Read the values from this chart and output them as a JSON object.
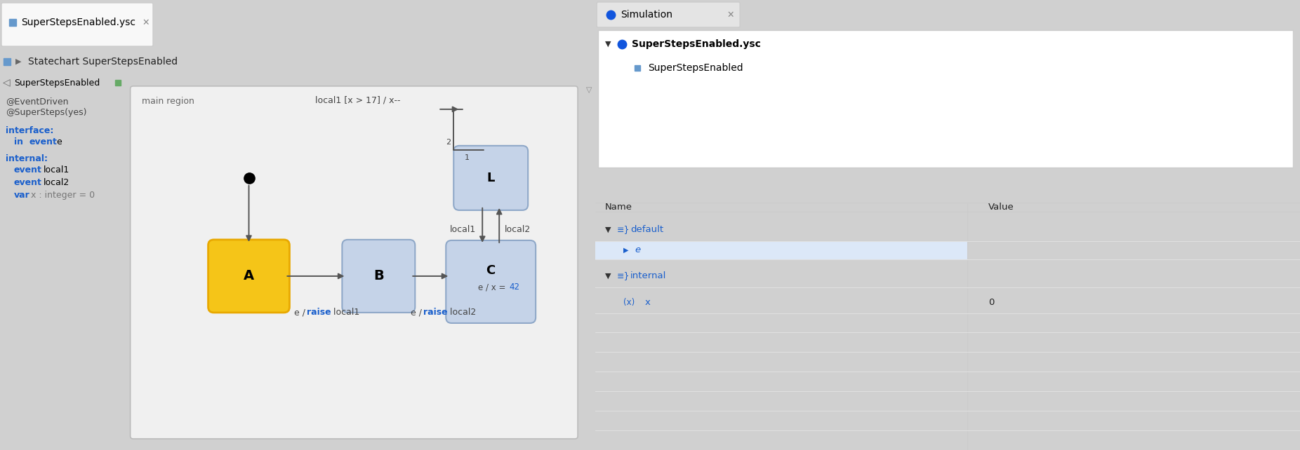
{
  "fig_width": 18.52,
  "fig_height": 6.42,
  "bg_outer": "#d0d0d0",
  "tab_bar_bg": "#e8e8e8",
  "toolbar_bg": "#efefef",
  "left_panel_bg": "#f2f2f2",
  "diagram_bg": "#f5f5f5",
  "right_top_bg": "#f0f0f0",
  "right_panel_bg": "#ffffff",
  "region_bg": "#ececec",
  "region_border": "#bbbbbb",
  "tab_text": "SuperStepsEnabled.ysc",
  "toolbar_text": "Statechart SuperStepsEnabled",
  "tree_text": "SuperStepsEnabled",
  "ann1": "@EventDriven",
  "ann2": "@SuperSteps(yes)",
  "iface_label": "interface:",
  "iface_in": "in",
  "iface_event": "event",
  "iface_e": "e",
  "int_label": "internal:",
  "int_event1": "event",
  "int_local1": "local1",
  "int_event2": "event",
  "int_local2": "local2",
  "int_var": "var",
  "int_vartext": "x : integer = 0",
  "main_region": "main region",
  "state_A_label": "A",
  "state_A_fc": "#f5c518",
  "state_A_ec": "#e8a800",
  "state_B_label": "B",
  "state_B_fc": "#c5d3e8",
  "state_B_ec": "#8fa8c8",
  "state_C_label": "C",
  "state_C_sub1": "e / x = ",
  "state_C_sub2": "42",
  "state_C_fc": "#c5d3e8",
  "state_C_ec": "#8fa8c8",
  "state_L_label": "L",
  "state_L_fc": "#c5d3e8",
  "state_L_ec": "#8fa8c8",
  "arrow_color": "#555555",
  "blue_kw": "#0033cc",
  "text_dark": "#333333",
  "lbl_AB1": "e / ",
  "lbl_AB2": "raise",
  "lbl_AB3": " local1",
  "lbl_BC1": "e / ",
  "lbl_BC2": "raise",
  "lbl_BC3": " local2",
  "lbl_local1": "local1",
  "lbl_local2": "local2",
  "lbl_loop": "local1 [x > 17] / x--",
  "loop_num1": "2",
  "loop_num2": "1",
  "sim_title": "Simulation",
  "sim_file": "SuperStepsEnabled.ysc",
  "sim_state": "SuperStepsEnabled",
  "tbl_name": "Name",
  "tbl_val": "Value",
  "tbl_default": "default",
  "tbl_e": "e",
  "tbl_internal": "internal",
  "tbl_x": "x",
  "tbl_x_val": "0",
  "blue_ui": "#1a5fcc"
}
